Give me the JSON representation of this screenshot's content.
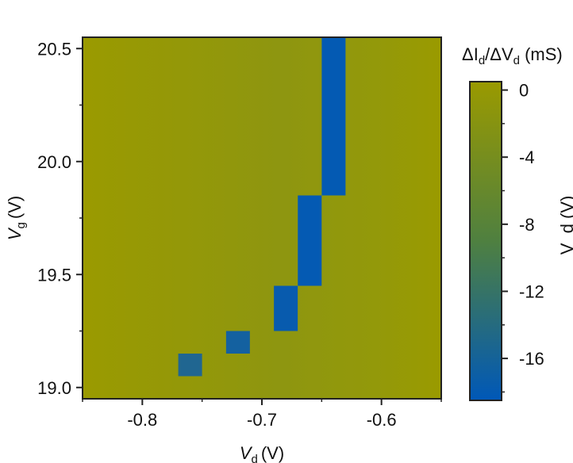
{
  "chart_data": {
    "type": "heatmap",
    "x_axis": {
      "label_italic": "V",
      "label_sub": "d",
      "label_unit": "(V)",
      "range": [
        -0.85,
        -0.55
      ],
      "ticks": [
        -0.8,
        -0.7,
        -0.6
      ],
      "tick_labels": [
        "-0.8",
        "-0.7",
        "-0.6"
      ]
    },
    "y_axis": {
      "label_italic": "V",
      "label_sub": "g",
      "label_unit": "(V)",
      "range": [
        18.95,
        20.55
      ],
      "ticks": [
        19.0,
        19.5,
        20.0,
        20.5
      ],
      "tick_labels": [
        "19.0",
        "19.5",
        "20.0",
        "20.5"
      ]
    },
    "background_value": -1.5,
    "cells": [
      {
        "vd": -0.76,
        "vg_from": 19.05,
        "vg_to": 19.15,
        "value": -14.5
      },
      {
        "vd": -0.72,
        "vg_from": 19.15,
        "vg_to": 19.25,
        "value": -16.0
      },
      {
        "vd": -0.68,
        "vg_from": 19.25,
        "vg_to": 19.45,
        "value": -17.5
      },
      {
        "vd": -0.66,
        "vg_from": 19.45,
        "vg_to": 19.85,
        "value": -18.0
      },
      {
        "vd": -0.64,
        "vg_from": 19.85,
        "vg_to": 20.55,
        "value": -18.0
      }
    ],
    "colorbar": {
      "label_parts": [
        "ΔI",
        "d",
        "/ΔV",
        "d",
        " (mS)"
      ],
      "range": [
        -18.5,
        0.5
      ],
      "ticks": [
        0,
        -4,
        -8,
        -12,
        -16
      ],
      "tick_labels": [
        "0",
        "-4",
        "-8",
        "-12",
        "-16"
      ],
      "color_top": "#9a9a00",
      "color_bottom": "#0058b8"
    },
    "grid": false,
    "right_edge_text": "V_d (V)"
  }
}
